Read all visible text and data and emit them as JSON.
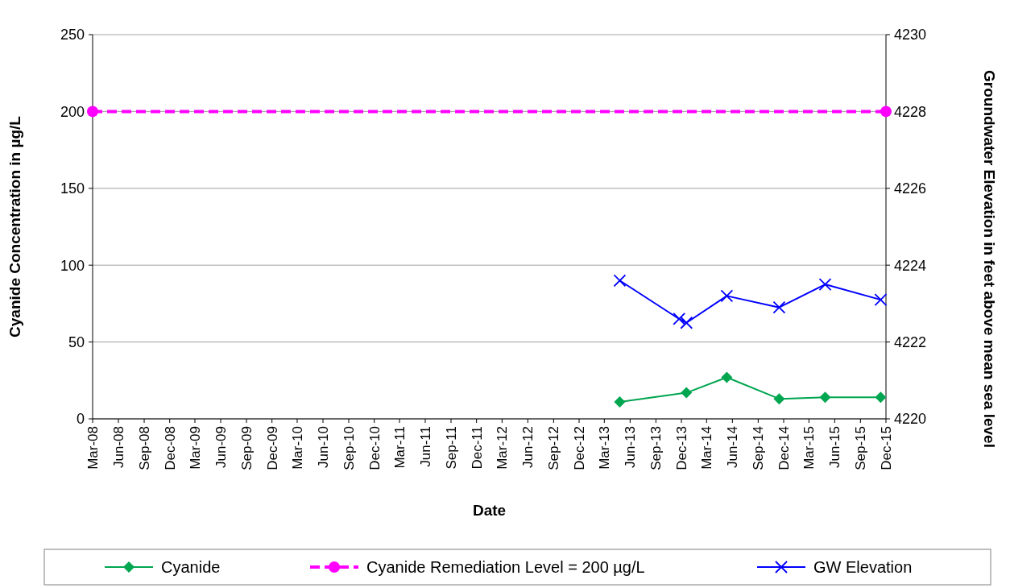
{
  "chart_data": {
    "type": "line",
    "xlabel": "Date",
    "ylabel": "Cyanide Concentration in µg/L",
    "y2label": "Groundwater Elevation in feet above mean sea level",
    "xlim": [
      "2008-03",
      "2015-12"
    ],
    "xticks": [
      {
        "value": "2008-03",
        "label": "Mar-08"
      },
      {
        "value": "2008-06",
        "label": "Jun-08"
      },
      {
        "value": "2008-09",
        "label": "Sep-08"
      },
      {
        "value": "2008-12",
        "label": "Dec-08"
      },
      {
        "value": "2009-03",
        "label": "Mar-09"
      },
      {
        "value": "2009-06",
        "label": "Jun-09"
      },
      {
        "value": "2009-09",
        "label": "Sep-09"
      },
      {
        "value": "2009-12",
        "label": "Dec-09"
      },
      {
        "value": "2010-03",
        "label": "Mar-10"
      },
      {
        "value": "2010-06",
        "label": "Jun-10"
      },
      {
        "value": "2010-09",
        "label": "Sep-10"
      },
      {
        "value": "2010-12",
        "label": "Dec-10"
      },
      {
        "value": "2011-03",
        "label": "Mar-11"
      },
      {
        "value": "2011-06",
        "label": "Jun-11"
      },
      {
        "value": "2011-09",
        "label": "Sep-11"
      },
      {
        "value": "2011-12",
        "label": "Dec-11"
      },
      {
        "value": "2012-03",
        "label": "Mar-12"
      },
      {
        "value": "2012-06",
        "label": "Jun-12"
      },
      {
        "value": "2012-09",
        "label": "Sep-12"
      },
      {
        "value": "2012-12",
        "label": "Dec-12"
      },
      {
        "value": "2013-03",
        "label": "Mar-13"
      },
      {
        "value": "2013-06",
        "label": "Jun-13"
      },
      {
        "value": "2013-09",
        "label": "Sep-13"
      },
      {
        "value": "2013-12",
        "label": "Dec-13"
      },
      {
        "value": "2014-03",
        "label": "Mar-14"
      },
      {
        "value": "2014-06",
        "label": "Jun-14"
      },
      {
        "value": "2014-09",
        "label": "Sep-14"
      },
      {
        "value": "2014-12",
        "label": "Dec-14"
      },
      {
        "value": "2015-03",
        "label": "Mar-15"
      },
      {
        "value": "2015-06",
        "label": "Jun-15"
      },
      {
        "value": "2015-09",
        "label": "Sep-15"
      },
      {
        "value": "2015-12",
        "label": "Dec-15"
      }
    ],
    "ylim": [
      0,
      250
    ],
    "yticks": [
      0,
      50,
      100,
      150,
      200,
      250
    ],
    "y2lim": [
      4220,
      4230
    ],
    "y2ticks": [
      4220,
      4222,
      4224,
      4226,
      4228,
      4230
    ],
    "grid": "y",
    "legend": "bottom",
    "series": [
      {
        "name": "Cyanide",
        "color": "#00a650",
        "marker": "diamond",
        "line_style": "solid",
        "x": [
          "2013-04-25",
          "2013-12-19",
          "2014-05-12",
          "2014-11-15",
          "2015-04-28",
          "2015-11-12"
        ],
        "values": [
          11,
          17,
          27,
          13,
          14,
          14
        ]
      },
      {
        "name": "Cyanide Remediation Level = 200 µg/L",
        "color": "#ff00ff",
        "marker": "circle",
        "line_style": "dashed",
        "x": [
          "2008-03",
          "2015-12"
        ],
        "values": [
          200,
          200
        ]
      },
      {
        "name": "GW Elevation",
        "color": "#0000ff",
        "marker": "cross",
        "line_style": "solid",
        "axis": "y2",
        "x": [
          "2013-04-25",
          "2013-11-23",
          "2013-12-19",
          "2014-05-12",
          "2014-11-15",
          "2015-04-28",
          "2015-11-12"
        ],
        "values": [
          4223.6,
          4222.6,
          4222.5,
          4223.2,
          4222.9,
          4223.5,
          4223.1
        ]
      }
    ]
  }
}
